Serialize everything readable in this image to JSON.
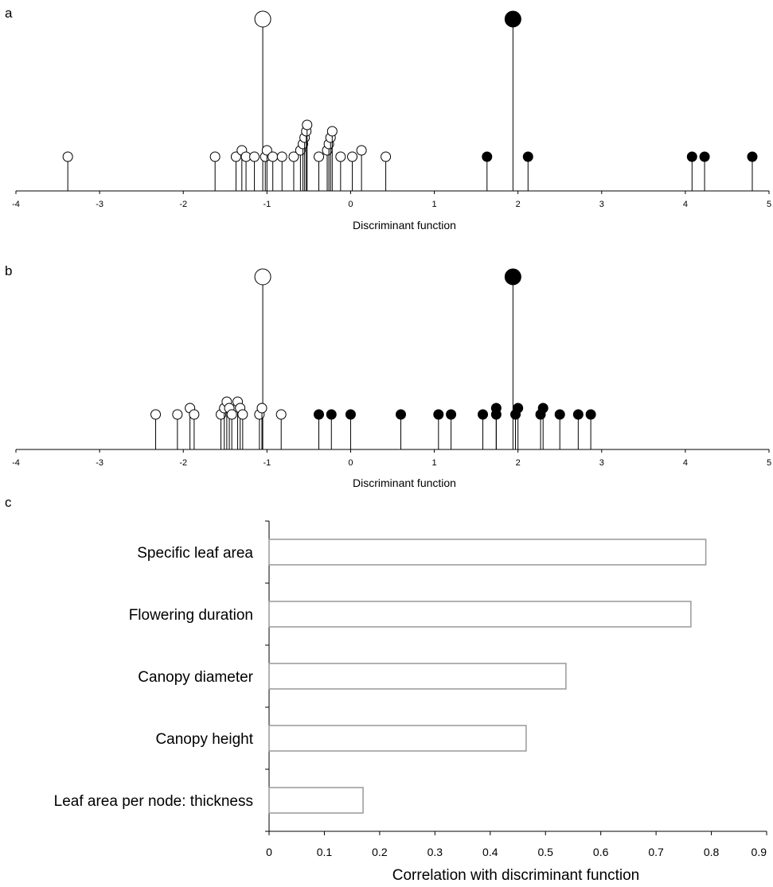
{
  "chart_data": [
    {
      "panel": "a",
      "type": "scatter",
      "xlabel": "Discriminant function",
      "xlim": [
        -4,
        5
      ],
      "xticks": [
        "-4",
        "-3",
        "-2",
        "-1",
        "0",
        "1",
        "2",
        "3",
        "4",
        "5"
      ],
      "grid": false,
      "series": [
        {
          "marker": "open",
          "x": [
            -3.38,
            -1.62,
            -1.37,
            -1.3,
            -1.25,
            -1.15,
            -1.02,
            -1.0,
            -0.93,
            -0.82,
            -0.68,
            -0.6,
            -0.57,
            -0.55,
            -0.53,
            -0.52,
            -0.38,
            -0.28,
            -0.26,
            -0.24,
            -0.22,
            -0.12,
            0.02,
            0.13,
            0.42
          ],
          "level": [
            1,
            1,
            1,
            2,
            1,
            1,
            1,
            2,
            1,
            1,
            1,
            2,
            3,
            4,
            5,
            6,
            1,
            2,
            3,
            4,
            5,
            1,
            1,
            2,
            1
          ]
        },
        {
          "marker": "filled",
          "x": [
            1.63,
            2.12,
            4.08,
            4.23,
            4.8
          ],
          "level": [
            1,
            1,
            1,
            1,
            1
          ]
        }
      ],
      "group_means": [
        {
          "marker": "open",
          "x": -1.05
        },
        {
          "marker": "filled",
          "x": 1.94
        }
      ]
    },
    {
      "panel": "b",
      "type": "scatter",
      "xlabel": "Discriminant function",
      "xlim": [
        -4,
        5
      ],
      "xticks": [
        "-4",
        "-3",
        "-2",
        "-1",
        "0",
        "1",
        "2",
        "3",
        "4",
        "5"
      ],
      "grid": false,
      "series": [
        {
          "marker": "open",
          "x": [
            -2.33,
            -2.07,
            -1.92,
            -1.87,
            -1.55,
            -1.51,
            -1.48,
            -1.45,
            -1.42,
            -1.35,
            -1.32,
            -1.29,
            -1.09,
            -1.06,
            -0.83
          ],
          "level": [
            1,
            1,
            2,
            1,
            1,
            2,
            3,
            2,
            1,
            3,
            2,
            1,
            1,
            2,
            1
          ]
        },
        {
          "marker": "filled",
          "x": [
            -0.38,
            -0.23,
            0.0,
            0.6,
            1.05,
            1.2,
            1.58,
            1.74,
            1.74,
            1.97,
            2.0,
            2.27,
            2.3,
            2.5,
            2.72,
            2.87
          ],
          "level": [
            1,
            1,
            1,
            1,
            1,
            1,
            1,
            1,
            2,
            1,
            2,
            1,
            2,
            1,
            1,
            1
          ]
        }
      ],
      "group_means": [
        {
          "marker": "open",
          "x": -1.05
        },
        {
          "marker": "filled",
          "x": 1.94
        }
      ]
    },
    {
      "panel": "c",
      "type": "bar",
      "orientation": "horizontal",
      "categories": [
        "Specific leaf area",
        "Flowering duration",
        "Canopy diameter",
        "Canopy height",
        "Leaf area per node: thickness"
      ],
      "values": [
        0.79,
        0.763,
        0.537,
        0.465,
        0.17
      ],
      "xlabel": "Correlation with discriminant function",
      "xlim": [
        0,
        0.9
      ],
      "xticks": [
        "0",
        "0.1",
        "0.2",
        "0.3",
        "0.4",
        "0.5",
        "0.6",
        "0.7",
        "0.8",
        "0.9"
      ],
      "grid": false
    }
  ]
}
